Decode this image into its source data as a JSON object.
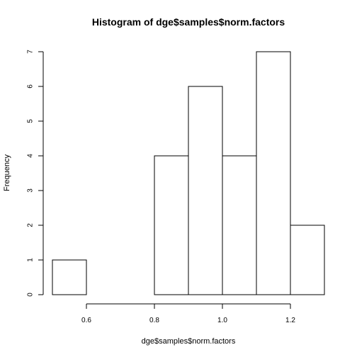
{
  "chart_data": {
    "type": "bar",
    "title": "Histogram of dge$samples$norm.factors",
    "xlabel": "dge$samples$norm.factors",
    "ylabel": "Frequency",
    "bins": [
      {
        "from": 0.5,
        "to": 0.6,
        "count": 1
      },
      {
        "from": 0.6,
        "to": 0.7,
        "count": 0
      },
      {
        "from": 0.7,
        "to": 0.8,
        "count": 0
      },
      {
        "from": 0.8,
        "to": 0.9,
        "count": 4
      },
      {
        "from": 0.9,
        "to": 1.0,
        "count": 6
      },
      {
        "from": 1.0,
        "to": 1.1,
        "count": 4
      },
      {
        "from": 1.1,
        "to": 1.2,
        "count": 7
      },
      {
        "from": 1.2,
        "to": 1.3,
        "count": 2
      }
    ],
    "xlim": [
      0.5,
      1.3
    ],
    "ylim": [
      0,
      7
    ],
    "x_ticks": [
      0.6,
      0.8,
      1.0,
      1.2
    ],
    "x_tick_labels": [
      "0.6",
      "0.8",
      "1.0",
      "1.2"
    ],
    "y_ticks": [
      0,
      1,
      2,
      3,
      4,
      5,
      6,
      7
    ],
    "y_tick_labels": [
      "0",
      "1",
      "2",
      "3",
      "4",
      "5",
      "6",
      "7"
    ],
    "grid": false,
    "colors": {
      "bar_fill": "#ffffff",
      "bar_stroke": "#000000"
    }
  }
}
